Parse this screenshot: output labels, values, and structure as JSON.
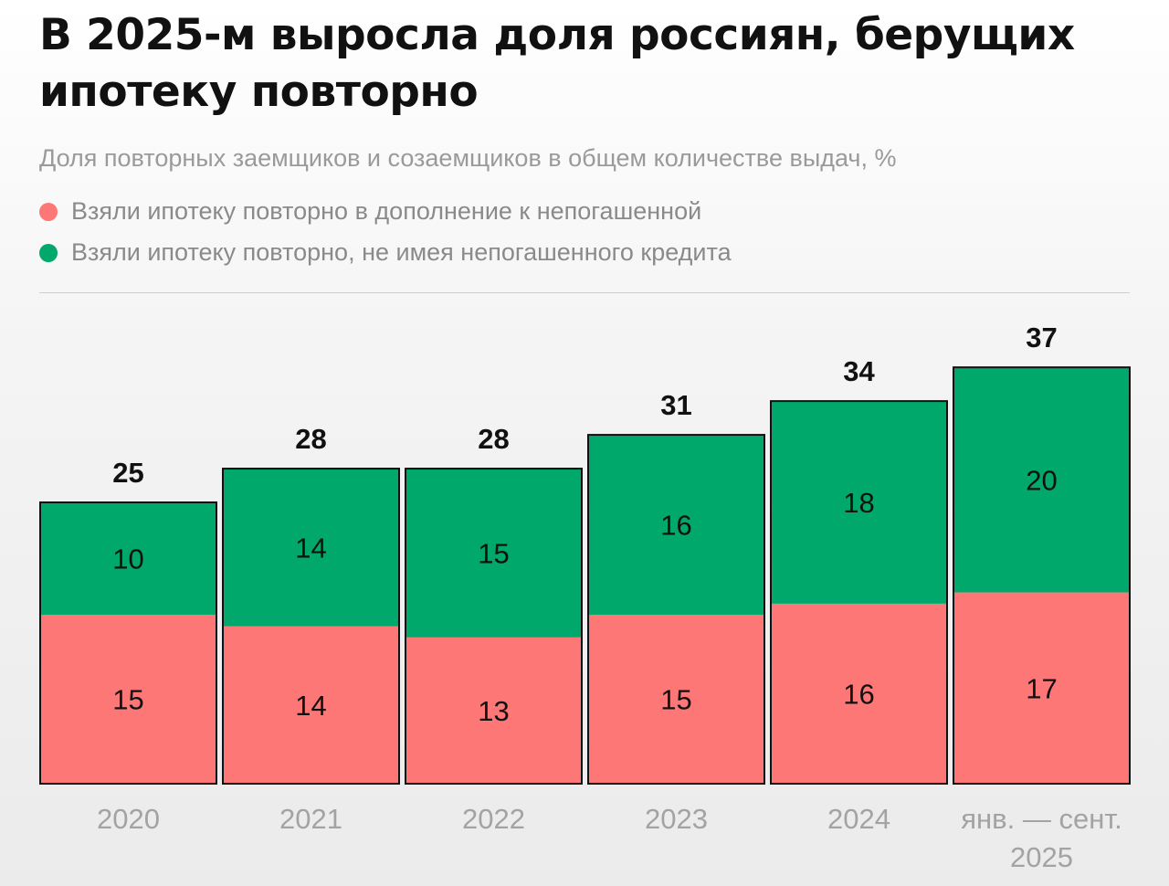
{
  "title": "В 2025-м выросла доля россиян, берущих ипотеку повторно",
  "subtitle": "Доля повторных заемщиков и созаемщиков в общем количестве выдач, %",
  "colors": {
    "red": "#fd7777",
    "green": "#00a86b"
  },
  "chart_data": {
    "type": "bar",
    "stacked": true,
    "categories": [
      "2020",
      "2021",
      "2022",
      "2023",
      "2024",
      "янв. — сент. 2025"
    ],
    "category_lines": [
      [
        "2020"
      ],
      [
        "2021"
      ],
      [
        "2022"
      ],
      [
        "2023"
      ],
      [
        "2024"
      ],
      [
        "янв. — сент.",
        "2025"
      ]
    ],
    "series": [
      {
        "name": "Взяли ипотеку повторно в дополнение к непогашенной",
        "color": "#fd7777",
        "values": [
          15,
          14,
          13,
          15,
          16,
          17
        ]
      },
      {
        "name": "Взяли ипотеку повторно, не имея непогашенного кредита",
        "color": "#00a86b",
        "values": [
          10,
          14,
          15,
          16,
          18,
          20
        ]
      }
    ],
    "totals": [
      25,
      28,
      28,
      31,
      34,
      37
    ],
    "legend_position": "top-left",
    "grid": false,
    "ylim": [
      0,
      37
    ]
  }
}
